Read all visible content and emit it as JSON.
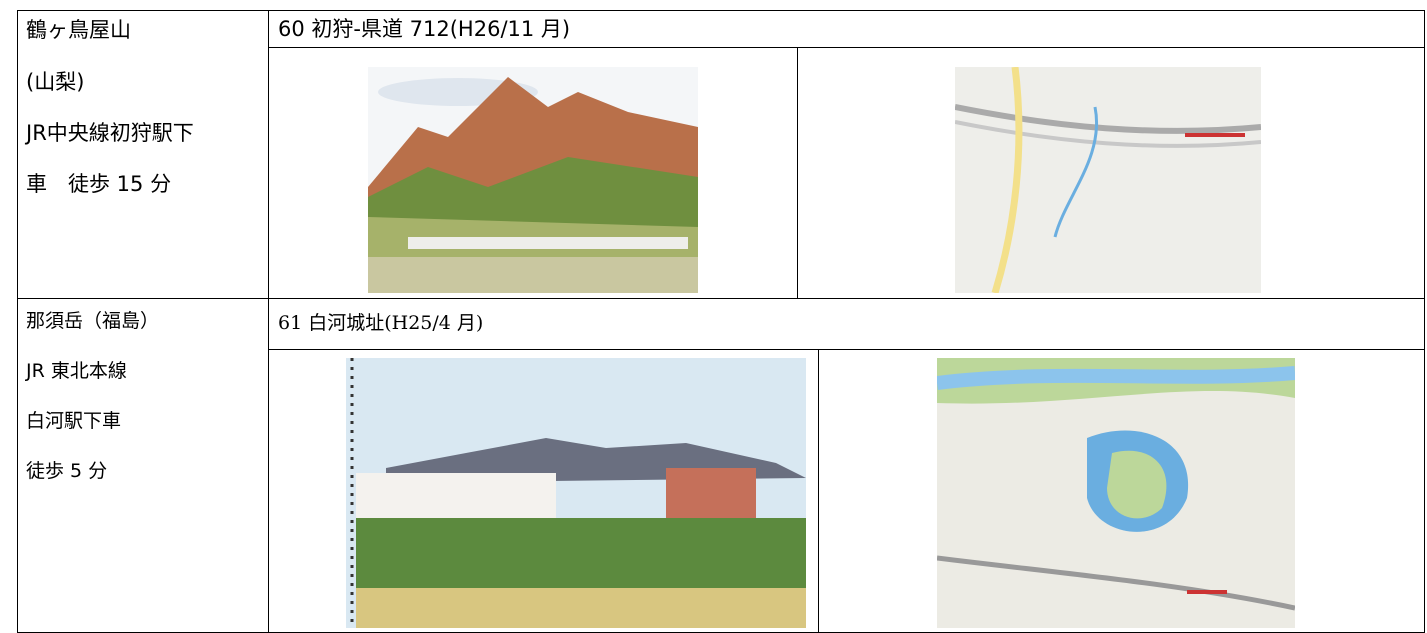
{
  "rows": [
    {
      "place": [
        "鶴ヶ鳥屋山",
        "(山梨)",
        "JR中央線初狩駅下",
        "車　徒歩 15 分"
      ],
      "caption": "60 初狩-県道 712(H26/11 月)"
    },
    {
      "place": [
        "那須岳（福島）",
        "JR 東北本線",
        "白河駅下車",
        "徒歩 5 分"
      ],
      "caption": "61 白河城址(H25/4 月)"
    }
  ]
}
